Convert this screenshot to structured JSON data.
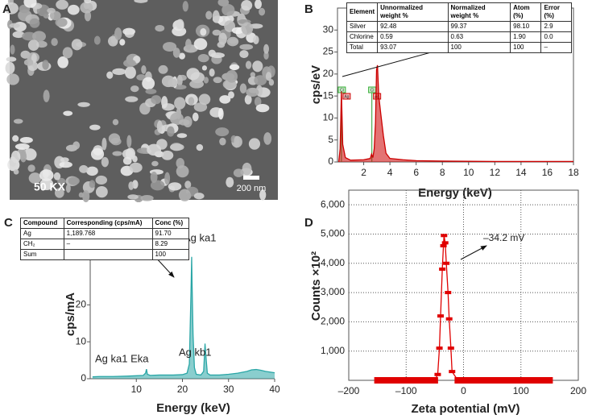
{
  "image_panel": {
    "label": "A",
    "magnification": "50 KX",
    "scale_bar": "200 nm"
  },
  "chart_data": [
    {
      "type": "line",
      "label": "B",
      "x_label": "Energy (keV)",
      "y_label": "cps/eV",
      "x": [
        0.1,
        0.2,
        0.3,
        0.4,
        0.6,
        1,
        2,
        2.5,
        2.6,
        2.7,
        2.8,
        2.9,
        2.98,
        3.05,
        3.15,
        3.3,
        3.5,
        3.7,
        4,
        5,
        6,
        8,
        12,
        18
      ],
      "series": [
        {
          "color": "#cc0000",
          "values": [
            0,
            3,
            16,
            4,
            1,
            0.4,
            0.5,
            0.8,
            1.8,
            1,
            3,
            9,
            21,
            22,
            15,
            11,
            6,
            2,
            0.8,
            0.5,
            0.3,
            0.2,
            0.1,
            0.1
          ]
        }
      ],
      "fill": true,
      "frame": true,
      "xlim": [
        0,
        18
      ],
      "xticks": [
        2,
        4,
        6,
        8,
        10,
        12,
        14,
        16,
        18
      ],
      "ylim": [
        0,
        35
      ],
      "yticks": [
        0,
        5,
        10,
        15,
        20,
        25,
        30
      ],
      "markers": [
        {
          "x": 0.3,
          "labels": [
            "Cl",
            "Ag"
          ]
        },
        {
          "x": 2.62,
          "labels": [
            "Cl",
            "Ag"
          ]
        }
      ],
      "table": {
        "columns": [
          "Element",
          "Unnormalized weight %",
          "Normalized weight %",
          "Atom (%)",
          "Error (%)"
        ],
        "rows": [
          [
            "Silver",
            "92.48",
            "99.37",
            "98.10",
            "2.9"
          ],
          [
            "Chlorine",
            "0.59",
            "0.63",
            "1.90",
            "0.0"
          ],
          [
            "Total",
            "93.07",
            "100",
            "100",
            "–"
          ]
        ]
      }
    },
    {
      "type": "line",
      "label": "C",
      "x_label": "Energy (keV)",
      "y_label": "cps/mA",
      "x": [
        0.5,
        2,
        5,
        8,
        10,
        11.5,
        12,
        12.2,
        12.4,
        13,
        15,
        18,
        20,
        21,
        21.5,
        21.9,
        22,
        22.1,
        22.3,
        22.6,
        23,
        24,
        24.6,
        24.9,
        25.1,
        25.4,
        26,
        28,
        30,
        32,
        34,
        35,
        36,
        37,
        38,
        40
      ],
      "series": [
        {
          "color": "#2aa6a6",
          "values": [
            0.5,
            0.6,
            0.6,
            0.7,
            0.8,
            0.9,
            1.5,
            2.6,
            1.2,
            0.9,
            1.0,
            1.0,
            1.1,
            1.5,
            4,
            26,
            33,
            25,
            12,
            3,
            1.2,
            1,
            2,
            9.5,
            6,
            1.5,
            1,
            1,
            1.2,
            1.5,
            2,
            2.4,
            2.5,
            2.3,
            2,
            1.6
          ]
        }
      ],
      "fill": true,
      "frame": false,
      "xlim": [
        0,
        40
      ],
      "xticks": [
        10,
        20,
        30,
        40
      ],
      "ylim": [
        0,
        36
      ],
      "yticks": [
        0,
        10,
        20
      ],
      "annotations": [
        "Ag ka1",
        "Ag kb1",
        "Ag ka1 Eka"
      ],
      "table": {
        "columns": [
          "Compound",
          "Corresponding (cps/mA)",
          "Conc (%)"
        ],
        "rows": [
          [
            "Ag",
            "1,189.768",
            "91.70"
          ],
          [
            "CH₂",
            "–",
            "8.29"
          ],
          [
            "Sum",
            null,
            "100"
          ]
        ]
      }
    },
    {
      "type": "line",
      "label": "D",
      "x_label": "Zeta potential (mV)",
      "y_label": "Counts ×10²",
      "x": [
        -150,
        -140,
        -130,
        -120,
        -110,
        -100,
        -90,
        -80,
        -70,
        -60,
        -50,
        -45,
        -42,
        -40,
        -37,
        -35,
        -34,
        -32,
        -30,
        -27,
        -25,
        -22,
        -20,
        -10,
        0,
        10,
        20,
        30,
        40,
        50,
        60,
        70,
        80,
        90,
        100,
        110,
        120,
        130,
        140,
        150
      ],
      "series": [
        {
          "color": "#e00000",
          "values": [
            0,
            0,
            0,
            0,
            0,
            0,
            0,
            0,
            0,
            0,
            0,
            200,
            1100,
            2200,
            3800,
            4600,
            4950,
            4700,
            4000,
            3000,
            2100,
            1100,
            300,
            0,
            0,
            0,
            0,
            0,
            0,
            0,
            0,
            0,
            0,
            0,
            0,
            0,
            0,
            0,
            0,
            0
          ]
        }
      ],
      "fill": false,
      "frame": true,
      "grid": true,
      "point_markers": true,
      "xlim": [
        -200,
        200
      ],
      "xticks": [
        {
          "value": -200,
          "label": "–200"
        },
        {
          "value": -100,
          "label": "–100"
        },
        0,
        100,
        200
      ],
      "ylim": [
        0,
        6500
      ],
      "yticks": [
        {
          "value": 1000,
          "label": "1,000"
        },
        {
          "value": 2000,
          "label": "2,000"
        },
        {
          "value": 3000,
          "label": "3,000"
        },
        {
          "value": 4000,
          "label": "4,000"
        },
        {
          "value": 5000,
          "label": "5,000"
        },
        {
          "value": 6000,
          "label": "6,000"
        }
      ],
      "annotations": [
        "–34.2 mV"
      ]
    }
  ]
}
